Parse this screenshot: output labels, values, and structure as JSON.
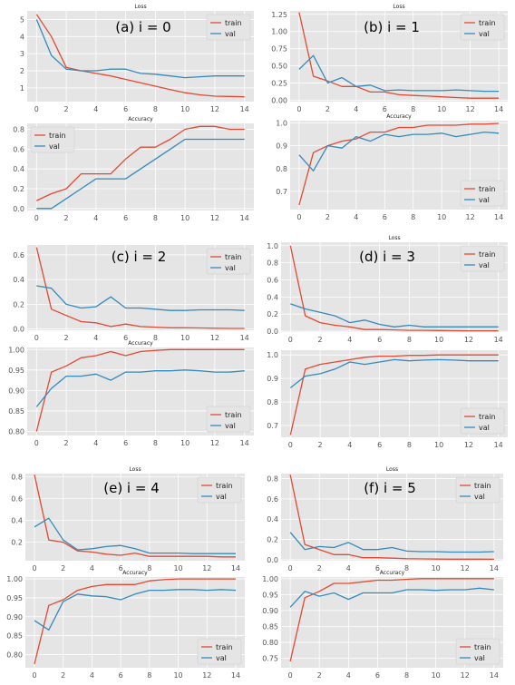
{
  "colors": {
    "train": "#e24a33",
    "val": "#348abd"
  },
  "chart_data": [
    {
      "panel": "(a) i = 0",
      "type": "line",
      "title": "Loss",
      "x": [
        0,
        1,
        2,
        3,
        4,
        5,
        6,
        7,
        8,
        9,
        10,
        11,
        12,
        13,
        14
      ],
      "ylim": [
        0.2,
        5.5
      ],
      "yticks": [
        1,
        2,
        3,
        4,
        5
      ],
      "ytick_labels": [
        "1",
        "2",
        "3",
        "4",
        "5"
      ],
      "xticks": [
        0,
        2,
        4,
        6,
        8,
        10,
        12,
        14
      ],
      "legend": "top-right",
      "series": [
        {
          "name": "train",
          "values": [
            5.3,
            4.0,
            2.2,
            2.0,
            1.85,
            1.7,
            1.5,
            1.3,
            1.1,
            0.9,
            0.72,
            0.6,
            0.52,
            0.5,
            0.48
          ]
        },
        {
          "name": "val",
          "values": [
            5.0,
            2.9,
            2.1,
            2.0,
            2.0,
            2.1,
            2.1,
            1.85,
            1.8,
            1.7,
            1.6,
            1.65,
            1.7,
            1.7,
            1.7
          ]
        }
      ]
    },
    {
      "panel": "(a) i = 0",
      "type": "line",
      "title": "Accuracy",
      "x": [
        0,
        1,
        2,
        3,
        4,
        5,
        6,
        7,
        8,
        9,
        10,
        11,
        12,
        13,
        14
      ],
      "ylim": [
        -0.02,
        0.86
      ],
      "yticks": [
        0,
        0.2,
        0.4,
        0.6,
        0.8
      ],
      "ytick_labels": [
        "0.0",
        "0.2",
        "0.4",
        "0.6",
        "0.8"
      ],
      "xticks": [
        0,
        2,
        4,
        6,
        8,
        10,
        12,
        14
      ],
      "legend": "top-left",
      "series": [
        {
          "name": "train",
          "values": [
            0.08,
            0.15,
            0.2,
            0.35,
            0.35,
            0.35,
            0.5,
            0.62,
            0.62,
            0.7,
            0.8,
            0.83,
            0.83,
            0.8,
            0.8
          ]
        },
        {
          "name": "val",
          "values": [
            0.0,
            0.0,
            0.1,
            0.2,
            0.3,
            0.3,
            0.3,
            0.4,
            0.5,
            0.6,
            0.7,
            0.7,
            0.7,
            0.7,
            0.7
          ]
        }
      ]
    },
    {
      "panel": "(b) i = 1",
      "type": "line",
      "title": "Loss",
      "x": [
        0,
        1,
        2,
        3,
        4,
        5,
        6,
        7,
        8,
        9,
        10,
        11,
        12,
        13,
        14
      ],
      "ylim": [
        -0.02,
        1.3
      ],
      "yticks": [
        0,
        0.25,
        0.5,
        0.75,
        1.0,
        1.25
      ],
      "ytick_labels": [
        "0.00",
        "0.25",
        "0.50",
        "0.75",
        "1.00",
        "1.25"
      ],
      "xticks": [
        0,
        2,
        4,
        6,
        8,
        10,
        12,
        14
      ],
      "legend": "top-right",
      "series": [
        {
          "name": "train",
          "values": [
            1.28,
            0.35,
            0.28,
            0.2,
            0.2,
            0.12,
            0.12,
            0.08,
            0.07,
            0.06,
            0.05,
            0.04,
            0.03,
            0.03,
            0.03
          ]
        },
        {
          "name": "val",
          "values": [
            0.45,
            0.65,
            0.25,
            0.33,
            0.2,
            0.22,
            0.14,
            0.15,
            0.14,
            0.14,
            0.14,
            0.15,
            0.14,
            0.13,
            0.13
          ]
        }
      ]
    },
    {
      "panel": "(b) i = 1",
      "type": "line",
      "title": "Accuracy",
      "x": [
        0,
        1,
        2,
        3,
        4,
        5,
        6,
        7,
        8,
        9,
        10,
        11,
        12,
        13,
        14
      ],
      "ylim": [
        0.62,
        1.01
      ],
      "yticks": [
        0.7,
        0.8,
        0.9,
        1.0
      ],
      "ytick_labels": [
        "0.7",
        "0.8",
        "0.9",
        "1.0"
      ],
      "xticks": [
        0,
        2,
        4,
        6,
        8,
        10,
        12,
        14
      ],
      "legend": "bottom-right",
      "series": [
        {
          "name": "train",
          "values": [
            0.64,
            0.87,
            0.9,
            0.92,
            0.93,
            0.96,
            0.96,
            0.98,
            0.98,
            0.99,
            0.99,
            0.99,
            0.995,
            0.995,
            0.998
          ]
        },
        {
          "name": "val",
          "values": [
            0.86,
            0.79,
            0.9,
            0.89,
            0.94,
            0.92,
            0.95,
            0.94,
            0.95,
            0.95,
            0.955,
            0.94,
            0.95,
            0.96,
            0.955
          ]
        }
      ]
    },
    {
      "panel": "(c) i = 2",
      "type": "line",
      "title": "",
      "x": [
        0,
        1,
        2,
        3,
        4,
        5,
        6,
        7,
        8,
        9,
        10,
        11,
        12,
        13,
        14
      ],
      "ylim": [
        -0.01,
        0.68
      ],
      "yticks": [
        0,
        0.2,
        0.4,
        0.6
      ],
      "ytick_labels": [
        "0.0",
        "0.2",
        "0.4",
        "0.6"
      ],
      "xticks": [
        0,
        2,
        4,
        6,
        8,
        10,
        12,
        14
      ],
      "legend": "top-right",
      "series": [
        {
          "name": "train",
          "values": [
            0.66,
            0.16,
            0.11,
            0.06,
            0.05,
            0.02,
            0.04,
            0.02,
            0.015,
            0.01,
            0.01,
            0.008,
            0.006,
            0.005,
            0.005
          ]
        },
        {
          "name": "val",
          "values": [
            0.35,
            0.33,
            0.2,
            0.17,
            0.18,
            0.26,
            0.17,
            0.17,
            0.16,
            0.15,
            0.15,
            0.155,
            0.155,
            0.155,
            0.15
          ]
        }
      ]
    },
    {
      "panel": "(c) i = 2",
      "type": "line",
      "title": "Accuracy",
      "x": [
        0,
        1,
        2,
        3,
        4,
        5,
        6,
        7,
        8,
        9,
        10,
        11,
        12,
        13,
        14
      ],
      "ylim": [
        0.79,
        1.005
      ],
      "yticks": [
        0.8,
        0.85,
        0.9,
        0.95,
        1.0
      ],
      "ytick_labels": [
        "0.80",
        "0.85",
        "0.90",
        "0.95",
        "1.00"
      ],
      "xticks": [
        0,
        2,
        4,
        6,
        8,
        10,
        12,
        14
      ],
      "legend": "bottom-right",
      "series": [
        {
          "name": "train",
          "values": [
            0.8,
            0.945,
            0.96,
            0.98,
            0.985,
            0.995,
            0.985,
            0.995,
            0.998,
            1.0,
            1.0,
            1.0,
            1.0,
            1.0,
            1.0
          ]
        },
        {
          "name": "val",
          "values": [
            0.86,
            0.905,
            0.935,
            0.935,
            0.94,
            0.925,
            0.945,
            0.945,
            0.948,
            0.948,
            0.95,
            0.948,
            0.945,
            0.945,
            0.948
          ]
        }
      ]
    },
    {
      "panel": "(d) i = 3",
      "type": "line",
      "title": "Loss",
      "x": [
        0,
        1,
        2,
        3,
        4,
        5,
        6,
        7,
        8,
        9,
        10,
        11,
        12,
        13,
        14
      ],
      "ylim": [
        -0.01,
        1.04
      ],
      "yticks": [
        0,
        0.2,
        0.4,
        0.6,
        0.8,
        1.0
      ],
      "ytick_labels": [
        "0.0",
        "0.2",
        "0.4",
        "0.6",
        "0.8",
        "1.0"
      ],
      "xticks": [
        0,
        2,
        4,
        6,
        8,
        10,
        12,
        14
      ],
      "legend": "top-right",
      "series": [
        {
          "name": "train",
          "values": [
            1.0,
            0.18,
            0.1,
            0.07,
            0.05,
            0.02,
            0.02,
            0.015,
            0.01,
            0.01,
            0.008,
            0.006,
            0.005,
            0.005,
            0.005
          ]
        },
        {
          "name": "val",
          "values": [
            0.32,
            0.26,
            0.22,
            0.18,
            0.1,
            0.13,
            0.08,
            0.05,
            0.07,
            0.05,
            0.05,
            0.05,
            0.05,
            0.05,
            0.05
          ]
        }
      ]
    },
    {
      "panel": "(d) i = 3",
      "type": "line",
      "title": "",
      "x": [
        0,
        1,
        2,
        3,
        4,
        5,
        6,
        7,
        8,
        9,
        10,
        11,
        12,
        13,
        14
      ],
      "ylim": [
        0.65,
        1.02
      ],
      "yticks": [
        0.7,
        0.8,
        0.9,
        1.0
      ],
      "ytick_labels": [
        "0.7",
        "0.8",
        "0.9",
        "1.0"
      ],
      "xticks": [
        0,
        2,
        4,
        6,
        8,
        10,
        12,
        14
      ],
      "legend": "bottom-right",
      "series": [
        {
          "name": "train",
          "values": [
            0.66,
            0.94,
            0.96,
            0.97,
            0.98,
            0.99,
            0.995,
            0.995,
            0.998,
            0.998,
            1.0,
            1.0,
            1.0,
            1.0,
            1.0
          ]
        },
        {
          "name": "val",
          "values": [
            0.86,
            0.91,
            0.92,
            0.94,
            0.97,
            0.96,
            0.97,
            0.98,
            0.975,
            0.978,
            0.98,
            0.978,
            0.975,
            0.975,
            0.975
          ]
        }
      ]
    },
    {
      "panel": "(e) i = 4",
      "type": "line",
      "title": "Loss",
      "x": [
        0,
        1,
        2,
        3,
        4,
        5,
        6,
        7,
        8,
        9,
        10,
        11,
        12,
        13,
        14
      ],
      "ylim": [
        0.03,
        0.83
      ],
      "yticks": [
        0.2,
        0.4,
        0.6,
        0.8
      ],
      "ytick_labels": [
        "0.2",
        "0.4",
        "0.6",
        "0.8"
      ],
      "xticks": [
        0,
        2,
        4,
        6,
        8,
        10,
        12,
        14
      ],
      "legend": "top-right",
      "series": [
        {
          "name": "train",
          "values": [
            0.82,
            0.22,
            0.2,
            0.12,
            0.11,
            0.09,
            0.08,
            0.1,
            0.07,
            0.07,
            0.07,
            0.07,
            0.07,
            0.065,
            0.065
          ]
        },
        {
          "name": "val",
          "values": [
            0.34,
            0.42,
            0.22,
            0.13,
            0.14,
            0.16,
            0.17,
            0.14,
            0.1,
            0.1,
            0.1,
            0.095,
            0.095,
            0.095,
            0.095
          ]
        }
      ]
    },
    {
      "panel": "(e) i = 4",
      "type": "line",
      "title": "Accuracy",
      "x": [
        0,
        1,
        2,
        3,
        4,
        5,
        6,
        7,
        8,
        9,
        10,
        11,
        12,
        13,
        14
      ],
      "ylim": [
        0.765,
        1.005
      ],
      "yticks": [
        0.8,
        0.85,
        0.9,
        0.95,
        1.0
      ],
      "ytick_labels": [
        "0.80",
        "0.85",
        "0.90",
        "0.95",
        "1.00"
      ],
      "xticks": [
        0,
        2,
        4,
        6,
        8,
        10,
        12,
        14
      ],
      "legend": "bottom-right",
      "series": [
        {
          "name": "train",
          "values": [
            0.775,
            0.93,
            0.945,
            0.97,
            0.98,
            0.985,
            0.985,
            0.985,
            0.995,
            0.998,
            1.0,
            1.0,
            1.0,
            1.0,
            1.0
          ]
        },
        {
          "name": "val",
          "values": [
            0.89,
            0.865,
            0.94,
            0.96,
            0.955,
            0.953,
            0.945,
            0.96,
            0.97,
            0.97,
            0.972,
            0.972,
            0.97,
            0.972,
            0.97
          ]
        }
      ]
    },
    {
      "panel": "(f) i = 5",
      "type": "line",
      "title": "Loss",
      "x": [
        0,
        1,
        2,
        3,
        4,
        5,
        6,
        7,
        8,
        9,
        10,
        11,
        12,
        13,
        14
      ],
      "ylim": [
        -0.01,
        0.85
      ],
      "yticks": [
        0,
        0.2,
        0.4,
        0.6,
        0.8
      ],
      "ytick_labels": [
        "0.0",
        "0.2",
        "0.4",
        "0.6",
        "0.8"
      ],
      "xticks": [
        0,
        2,
        4,
        6,
        8,
        10,
        12,
        14
      ],
      "legend": "top-right",
      "series": [
        {
          "name": "train",
          "values": [
            0.84,
            0.15,
            0.1,
            0.05,
            0.05,
            0.02,
            0.02,
            0.015,
            0.01,
            0.008,
            0.006,
            0.005,
            0.005,
            0.005,
            0.004
          ]
        },
        {
          "name": "val",
          "values": [
            0.27,
            0.1,
            0.13,
            0.12,
            0.17,
            0.1,
            0.1,
            0.12,
            0.085,
            0.08,
            0.08,
            0.075,
            0.075,
            0.075,
            0.08
          ]
        }
      ]
    },
    {
      "panel": "(f) i = 5",
      "type": "line",
      "title": "Accuracy",
      "x": [
        0,
        1,
        2,
        3,
        4,
        5,
        6,
        7,
        8,
        9,
        10,
        11,
        12,
        13,
        14
      ],
      "ylim": [
        0.72,
        1.005
      ],
      "yticks": [
        0.75,
        0.8,
        0.85,
        0.9,
        0.95,
        1.0
      ],
      "ytick_labels": [
        "0.75",
        "0.80",
        "0.85",
        "0.90",
        "0.95",
        "1.00"
      ],
      "xticks": [
        0,
        2,
        4,
        6,
        8,
        10,
        12,
        14
      ],
      "legend": "bottom-right",
      "series": [
        {
          "name": "train",
          "values": [
            0.74,
            0.94,
            0.96,
            0.985,
            0.985,
            0.99,
            0.995,
            0.995,
            0.998,
            1.0,
            1.0,
            1.0,
            1.0,
            1.0,
            1.0
          ]
        },
        {
          "name": "val",
          "values": [
            0.91,
            0.96,
            0.945,
            0.955,
            0.935,
            0.955,
            0.955,
            0.955,
            0.965,
            0.965,
            0.963,
            0.965,
            0.965,
            0.97,
            0.965
          ]
        }
      ]
    }
  ]
}
